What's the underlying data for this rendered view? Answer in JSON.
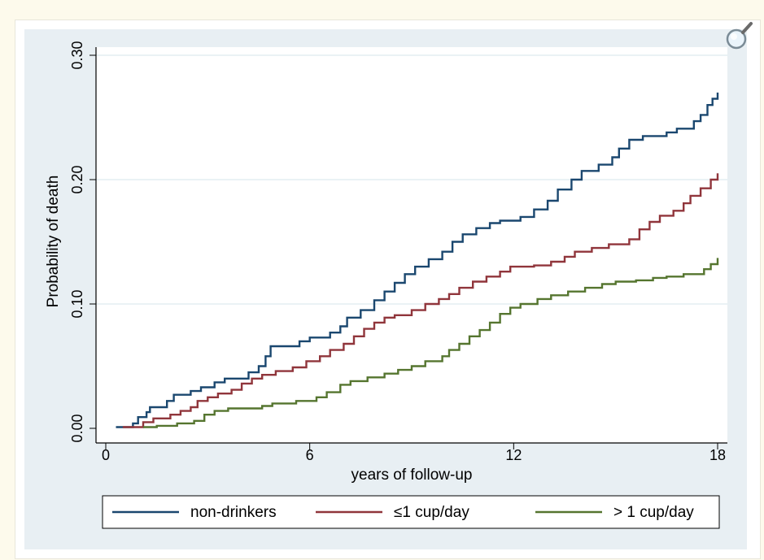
{
  "chart_data": {
    "type": "line",
    "title": "",
    "xlabel": "years of follow-up",
    "ylabel": "Probability of death",
    "xlim": [
      0,
      18
    ],
    "ylim": [
      0,
      0.3
    ],
    "x_ticks": [
      0,
      6,
      12,
      18
    ],
    "x_tick_labels": [
      "0",
      "6",
      "12",
      "18"
    ],
    "y_ticks": [
      0,
      0.1,
      0.2,
      0.3
    ],
    "y_tick_labels": [
      "0.00",
      "0.10",
      "0.20",
      "0.30"
    ],
    "grid": "horizontal",
    "legend_position": "bottom",
    "step": true,
    "series": [
      {
        "name": "non-drinkers",
        "color": "#1a476f",
        "points": [
          [
            0.3,
            0.001
          ],
          [
            0.7,
            0.001
          ],
          [
            0.8,
            0.004
          ],
          [
            0.95,
            0.009
          ],
          [
            1.2,
            0.013
          ],
          [
            1.3,
            0.017
          ],
          [
            1.8,
            0.022
          ],
          [
            2.0,
            0.027
          ],
          [
            2.5,
            0.03
          ],
          [
            2.8,
            0.033
          ],
          [
            3.2,
            0.037
          ],
          [
            3.5,
            0.04
          ],
          [
            4.2,
            0.045
          ],
          [
            4.5,
            0.05
          ],
          [
            4.7,
            0.058
          ],
          [
            4.85,
            0.066
          ],
          [
            5.7,
            0.07
          ],
          [
            6.0,
            0.073
          ],
          [
            6.6,
            0.077
          ],
          [
            6.9,
            0.082
          ],
          [
            7.1,
            0.089
          ],
          [
            7.5,
            0.095
          ],
          [
            7.9,
            0.103
          ],
          [
            8.2,
            0.11
          ],
          [
            8.5,
            0.117
          ],
          [
            8.8,
            0.124
          ],
          [
            9.1,
            0.13
          ],
          [
            9.5,
            0.136
          ],
          [
            9.9,
            0.142
          ],
          [
            10.2,
            0.15
          ],
          [
            10.5,
            0.156
          ],
          [
            10.9,
            0.161
          ],
          [
            11.3,
            0.165
          ],
          [
            11.6,
            0.167
          ],
          [
            12.2,
            0.17
          ],
          [
            12.6,
            0.176
          ],
          [
            13.0,
            0.183
          ],
          [
            13.3,
            0.192
          ],
          [
            13.7,
            0.2
          ],
          [
            14.0,
            0.207
          ],
          [
            14.5,
            0.212
          ],
          [
            14.9,
            0.218
          ],
          [
            15.1,
            0.225
          ],
          [
            15.4,
            0.232
          ],
          [
            15.8,
            0.235
          ],
          [
            16.5,
            0.238
          ],
          [
            16.8,
            0.241
          ],
          [
            17.3,
            0.247
          ],
          [
            17.5,
            0.252
          ],
          [
            17.7,
            0.26
          ],
          [
            17.85,
            0.265
          ],
          [
            18.0,
            0.27
          ]
        ]
      },
      {
        "name": "≤1 cup/day",
        "color": "#90353b",
        "points": [
          [
            0.5,
            0.001
          ],
          [
            0.95,
            0.001
          ],
          [
            1.1,
            0.005
          ],
          [
            1.4,
            0.008
          ],
          [
            1.9,
            0.011
          ],
          [
            2.2,
            0.014
          ],
          [
            2.5,
            0.017
          ],
          [
            2.7,
            0.022
          ],
          [
            3.0,
            0.025
          ],
          [
            3.3,
            0.028
          ],
          [
            3.7,
            0.031
          ],
          [
            4.0,
            0.036
          ],
          [
            4.3,
            0.04
          ],
          [
            4.6,
            0.043
          ],
          [
            5.0,
            0.046
          ],
          [
            5.5,
            0.049
          ],
          [
            5.9,
            0.054
          ],
          [
            6.3,
            0.058
          ],
          [
            6.6,
            0.063
          ],
          [
            7.0,
            0.068
          ],
          [
            7.3,
            0.074
          ],
          [
            7.6,
            0.08
          ],
          [
            7.9,
            0.085
          ],
          [
            8.2,
            0.089
          ],
          [
            8.5,
            0.091
          ],
          [
            9.0,
            0.095
          ],
          [
            9.4,
            0.1
          ],
          [
            9.8,
            0.104
          ],
          [
            10.1,
            0.108
          ],
          [
            10.4,
            0.113
          ],
          [
            10.8,
            0.118
          ],
          [
            11.2,
            0.122
          ],
          [
            11.6,
            0.126
          ],
          [
            11.9,
            0.13
          ],
          [
            12.6,
            0.131
          ],
          [
            13.1,
            0.134
          ],
          [
            13.5,
            0.138
          ],
          [
            13.8,
            0.142
          ],
          [
            14.3,
            0.145
          ],
          [
            14.8,
            0.148
          ],
          [
            15.4,
            0.152
          ],
          [
            15.7,
            0.16
          ],
          [
            16.0,
            0.166
          ],
          [
            16.3,
            0.171
          ],
          [
            16.7,
            0.175
          ],
          [
            17.0,
            0.181
          ],
          [
            17.2,
            0.187
          ],
          [
            17.5,
            0.193
          ],
          [
            17.8,
            0.2
          ],
          [
            18.0,
            0.205
          ]
        ]
      },
      {
        "name": "> 1 cup/day",
        "color": "#55752f",
        "points": [
          [
            1.1,
            0.001
          ],
          [
            1.5,
            0.002
          ],
          [
            2.1,
            0.004
          ],
          [
            2.6,
            0.006
          ],
          [
            2.9,
            0.011
          ],
          [
            3.2,
            0.014
          ],
          [
            3.6,
            0.016
          ],
          [
            4.6,
            0.018
          ],
          [
            4.9,
            0.02
          ],
          [
            5.6,
            0.022
          ],
          [
            6.2,
            0.025
          ],
          [
            6.5,
            0.029
          ],
          [
            6.9,
            0.035
          ],
          [
            7.2,
            0.038
          ],
          [
            7.7,
            0.041
          ],
          [
            8.2,
            0.044
          ],
          [
            8.6,
            0.047
          ],
          [
            9.0,
            0.05
          ],
          [
            9.4,
            0.054
          ],
          [
            9.9,
            0.058
          ],
          [
            10.1,
            0.063
          ],
          [
            10.4,
            0.068
          ],
          [
            10.7,
            0.074
          ],
          [
            11.0,
            0.079
          ],
          [
            11.3,
            0.085
          ],
          [
            11.6,
            0.092
          ],
          [
            11.9,
            0.097
          ],
          [
            12.2,
            0.1
          ],
          [
            12.7,
            0.104
          ],
          [
            13.1,
            0.107
          ],
          [
            13.6,
            0.11
          ],
          [
            14.1,
            0.113
          ],
          [
            14.6,
            0.116
          ],
          [
            15.0,
            0.118
          ],
          [
            15.6,
            0.119
          ],
          [
            16.1,
            0.121
          ],
          [
            16.5,
            0.122
          ],
          [
            17.0,
            0.124
          ],
          [
            17.6,
            0.128
          ],
          [
            17.8,
            0.132
          ],
          [
            18.0,
            0.137
          ]
        ]
      }
    ]
  },
  "icons": {
    "zoom": "magnifier-icon"
  }
}
